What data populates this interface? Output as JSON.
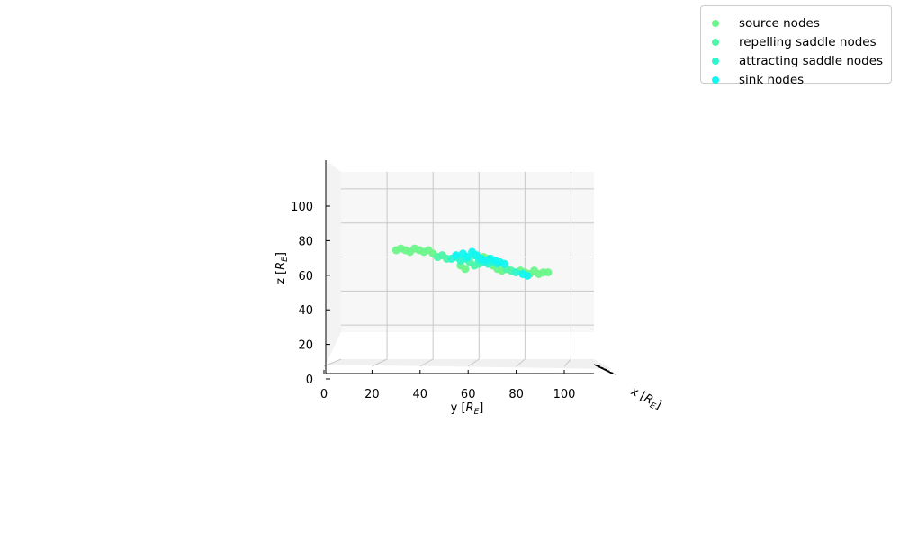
{
  "chart_data": {
    "type": "scatter",
    "projection": "3d",
    "ylabel_text": "y [",
    "zlabel_text": "z [",
    "xlabel_text": "x [",
    "axis_unit": "R",
    "axis_unit_sub": "E",
    "ylim": [
      0,
      110
    ],
    "zlim": [
      0,
      110
    ],
    "yticks": [
      "0",
      "20",
      "40",
      "60",
      "80",
      "100"
    ],
    "zticks": [
      "0",
      "20",
      "40",
      "60",
      "80",
      "100"
    ],
    "grid": true,
    "legend_position": "top-right",
    "series": [
      {
        "name": "source nodes",
        "color": "#6cf58a",
        "points": [
          [
            24,
            64
          ],
          [
            26,
            65
          ],
          [
            28,
            64
          ],
          [
            30,
            63
          ],
          [
            32,
            65
          ],
          [
            34,
            64
          ],
          [
            36,
            63
          ],
          [
            38,
            64
          ],
          [
            40,
            62
          ],
          [
            52,
            55
          ],
          [
            54,
            53
          ],
          [
            66,
            55
          ],
          [
            68,
            53
          ],
          [
            70,
            52
          ],
          [
            78,
            52
          ],
          [
            80,
            51
          ],
          [
            82,
            50
          ],
          [
            84,
            52
          ],
          [
            86,
            50
          ],
          [
            88,
            51
          ],
          [
            90,
            51
          ],
          [
            62,
            60
          ],
          [
            64,
            59
          ]
        ]
      },
      {
        "name": "repelling saddle nodes",
        "color": "#4cf5a8",
        "points": [
          [
            42,
            60
          ],
          [
            44,
            61
          ],
          [
            46,
            59
          ],
          [
            56,
            57
          ],
          [
            58,
            55
          ],
          [
            60,
            56
          ],
          [
            72,
            53
          ],
          [
            74,
            52
          ]
        ]
      },
      {
        "name": "attracting saddle nodes",
        "color": "#2ef5cc",
        "points": [
          [
            48,
            59
          ],
          [
            50,
            60
          ],
          [
            52,
            58
          ],
          [
            54,
            59
          ],
          [
            58,
            61
          ],
          [
            60,
            58
          ],
          [
            62,
            57
          ],
          [
            64,
            56
          ],
          [
            66,
            57
          ],
          [
            68,
            56
          ],
          [
            76,
            51
          ]
        ]
      },
      {
        "name": "sink nodes",
        "color": "#12f5f0",
        "points": [
          [
            50,
            61
          ],
          [
            53,
            62
          ],
          [
            55,
            60
          ],
          [
            57,
            63
          ],
          [
            59,
            61
          ],
          [
            61,
            59
          ],
          [
            63,
            58
          ],
          [
            65,
            59
          ],
          [
            67,
            58
          ],
          [
            69,
            57
          ],
          [
            71,
            56
          ],
          [
            79,
            50
          ],
          [
            81,
            49
          ]
        ]
      }
    ]
  },
  "legend": [
    {
      "label": "source nodes",
      "color": "#6cf58a"
    },
    {
      "label": "repelling saddle nodes",
      "color": "#4cf5a8"
    },
    {
      "label": "attracting saddle nodes",
      "color": "#2ef5cc"
    },
    {
      "label": "sink nodes",
      "color": "#12f5f0"
    }
  ]
}
